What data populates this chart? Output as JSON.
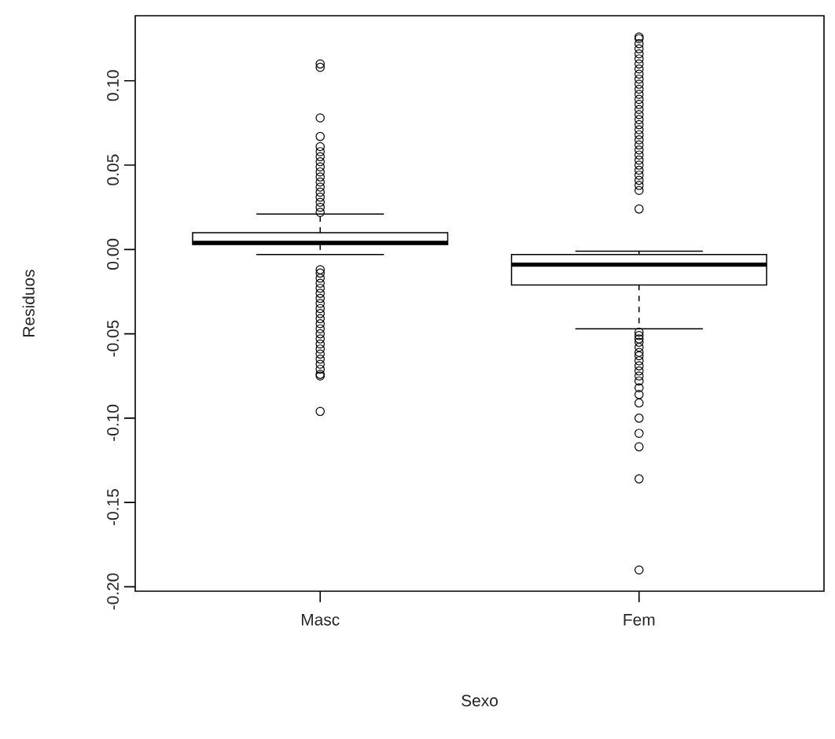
{
  "chart_data": {
    "type": "box",
    "xlabel": "Sexo",
    "ylabel": "Residuos",
    "categories": [
      "Masc",
      "Fem"
    ],
    "ylim": [
      -0.2026,
      0.1386
    ],
    "yticks": [
      {
        "value": -0.2,
        "label": "-0.20"
      },
      {
        "value": -0.15,
        "label": "-0.15"
      },
      {
        "value": -0.1,
        "label": "-0.10"
      },
      {
        "value": -0.05,
        "label": "-0.05"
      },
      {
        "value": 0,
        "label": "0.00"
      },
      {
        "value": 0.05,
        "label": "0.05"
      },
      {
        "value": 0.1,
        "label": "0.10"
      }
    ],
    "grid": false,
    "marker": "circle",
    "boxes": [
      {
        "low": -0.003,
        "q1": 0.003,
        "median": 0.004,
        "q3": 0.01,
        "high": 0.021,
        "outliers": [
          0.11,
          0.108,
          0.078,
          0.067,
          0.061,
          0.058,
          0.055,
          0.052,
          0.049,
          0.046,
          0.043,
          0.04,
          0.037,
          0.034,
          0.031,
          0.028,
          0.025,
          0.022,
          -0.012,
          -0.014,
          -0.017,
          -0.02,
          -0.023,
          -0.026,
          -0.029,
          -0.032,
          -0.035,
          -0.038,
          -0.041,
          -0.044,
          -0.047,
          -0.05,
          -0.053,
          -0.056,
          -0.059,
          -0.062,
          -0.065,
          -0.068,
          -0.071,
          -0.074,
          -0.075,
          -0.096
        ]
      },
      {
        "low": -0.047,
        "q1": -0.021,
        "median": -0.009,
        "q3": -0.003,
        "high": -0.001,
        "outliers": [
          0.024,
          0.035,
          0.038,
          0.041,
          0.044,
          0.047,
          0.05,
          0.053,
          0.056,
          0.059,
          0.062,
          0.065,
          0.068,
          0.071,
          0.074,
          0.077,
          0.08,
          0.083,
          0.086,
          0.089,
          0.092,
          0.095,
          0.098,
          0.101,
          0.104,
          0.107,
          0.11,
          0.113,
          0.116,
          0.119,
          0.122,
          0.125,
          0.126,
          -0.049,
          -0.051,
          -0.053,
          -0.055,
          -0.058,
          -0.061,
          -0.063,
          -0.066,
          -0.069,
          -0.072,
          -0.075,
          -0.078,
          -0.082,
          -0.086,
          -0.091,
          -0.1,
          -0.109,
          -0.117,
          -0.136,
          -0.19
        ]
      }
    ]
  }
}
